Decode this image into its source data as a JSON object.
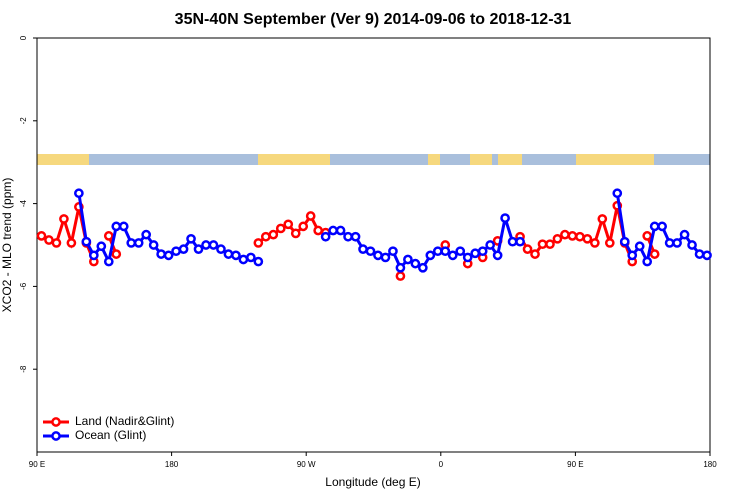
{
  "chart_data": {
    "type": "line",
    "title": "35N-40N September (Ver 9)   2014-09-06 to 2018-12-31",
    "xlabel": "Longitude (deg E)",
    "ylabel": "XCO2 - MLO trend (ppm)",
    "xlim": [
      90,
      540
    ],
    "ylim": [
      -10,
      0
    ],
    "xticks": [
      {
        "value": 90,
        "label": "90 E"
      },
      180,
      {
        "value": 270,
        "label": "90 W"
      },
      {
        "value": 360,
        "label": "0"
      },
      {
        "value": 450,
        "label": "90 E"
      },
      {
        "value": 540,
        "label": "180"
      }
    ],
    "yticks": [
      0,
      -2,
      -4,
      -6,
      -8
    ],
    "legend": "bottom-left",
    "x": [
      93,
      98,
      103,
      108,
      113,
      118,
      123,
      128,
      133,
      138,
      143,
      148,
      153,
      158,
      163,
      168,
      173,
      178,
      183,
      188,
      193,
      198,
      203,
      208,
      213,
      218,
      223,
      228,
      233,
      238,
      243,
      248,
      253,
      258,
      263,
      268,
      273,
      278,
      283,
      288,
      293,
      298,
      303,
      308,
      313,
      318,
      323,
      328,
      333,
      338,
      343,
      348,
      353,
      358,
      363,
      368,
      373,
      378,
      383,
      388,
      393,
      398,
      403,
      408,
      413,
      418,
      423,
      428,
      433,
      438,
      443,
      448,
      453,
      458,
      463,
      468,
      473,
      478,
      483,
      488,
      493,
      498,
      503,
      508,
      513,
      518,
      523,
      528,
      533,
      538
    ],
    "series": [
      {
        "name": "Land (Nadir&Glint)",
        "color": "#ff0000",
        "values": [
          -4.78,
          -4.88,
          -4.95,
          -4.37,
          -4.95,
          -4.08,
          -4.95,
          -5.4,
          null,
          -4.78,
          -5.22,
          null,
          null,
          null,
          null,
          null,
          null,
          null,
          null,
          null,
          null,
          null,
          null,
          null,
          null,
          null,
          null,
          null,
          null,
          -4.95,
          -4.8,
          -4.75,
          -4.6,
          -4.5,
          -4.72,
          -4.55,
          -4.3,
          -4.65,
          -4.7,
          null,
          null,
          null,
          null,
          null,
          null,
          null,
          null,
          null,
          -5.75,
          null,
          null,
          null,
          null,
          null,
          -5.0,
          null,
          null,
          -5.45,
          null,
          -5.3,
          null,
          -4.9,
          null,
          null,
          -4.8,
          -5.1,
          -5.22,
          -4.98,
          -4.98,
          -4.85,
          -4.75,
          -4.78,
          -4.8,
          -4.85,
          -4.95,
          -4.37,
          -4.95,
          -4.05,
          -4.95,
          -5.4,
          null,
          -4.78,
          -5.22,
          null,
          null,
          null,
          null,
          null,
          null,
          null
        ]
      },
      {
        "name": "Ocean (Glint)",
        "color": "#0000ff",
        "values": [
          null,
          null,
          null,
          null,
          null,
          -3.75,
          -4.92,
          -5.25,
          -5.03,
          -5.4,
          -4.55,
          -4.55,
          -4.95,
          -4.95,
          -4.75,
          -5.0,
          -5.22,
          -5.25,
          -5.15,
          -5.1,
          -4.85,
          -5.1,
          -5.0,
          -5.0,
          -5.1,
          -5.22,
          -5.25,
          -5.35,
          -5.3,
          -5.4,
          null,
          null,
          null,
          null,
          null,
          null,
          null,
          null,
          -4.8,
          -4.65,
          -4.65,
          -4.8,
          -4.8,
          -5.1,
          -5.15,
          -5.25,
          -5.3,
          -5.15,
          -5.55,
          -5.35,
          -5.45,
          -5.55,
          -5.25,
          -5.15,
          -5.15,
          -5.25,
          -5.15,
          -5.3,
          -5.2,
          -5.15,
          -5.0,
          -5.25,
          -4.35,
          -4.92,
          -4.92,
          null,
          null,
          null,
          null,
          null,
          null,
          null,
          null,
          null,
          null,
          null,
          null,
          -3.75,
          -4.92,
          -5.25,
          -5.03,
          -5.4,
          -4.55,
          -4.55,
          -4.95,
          -4.95,
          -4.75,
          -5.0,
          -5.22,
          -5.25
        ]
      }
    ]
  }
}
